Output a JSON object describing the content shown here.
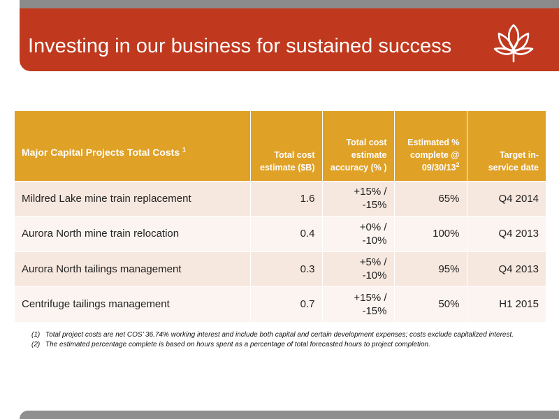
{
  "slide": {
    "title": "Investing in our business for sustained success"
  },
  "table": {
    "headers": {
      "project": "Major Capital Projects Total Costs",
      "project_sup": "1",
      "total_cost": "Total cost estimate ($B)",
      "accuracy": "Total cost estimate accuracy (% )",
      "pct_complete": "Estimated % complete @ 09/30/13",
      "pct_complete_sup": "2",
      "target_date": "Target in-service date"
    },
    "rows": [
      {
        "project": "Mildred Lake mine train replacement",
        "cost": "1.6",
        "accuracy_a": "+15% /",
        "accuracy_b": "-15%",
        "pct": "65%",
        "date": "Q4 2014"
      },
      {
        "project": "Aurora North mine train relocation",
        "cost": "0.4",
        "accuracy_a": "+0% /",
        "accuracy_b": "-10%",
        "pct": "100%",
        "date": "Q4 2013"
      },
      {
        "project": "Aurora North tailings management",
        "cost": "0.3",
        "accuracy_a": "+5% /",
        "accuracy_b": "-10%",
        "pct": "95%",
        "date": "Q4 2013"
      },
      {
        "project": "Centrifuge tailings management",
        "cost": "0.7",
        "accuracy_a": "+15% /",
        "accuracy_b": "-15%",
        "pct": "50%",
        "date": "H1 2015"
      }
    ]
  },
  "footnotes": [
    {
      "num": "(1)",
      "text": "Total project costs are net COS’ 36.74% working interest and include both capital and certain development expenses; costs exclude capitalized interest."
    },
    {
      "num": "(2)",
      "text": "The estimated percentage complete is based on hours spent as a percentage of total forecasted hours to project completion."
    }
  ],
  "colors": {
    "title_bar": "#c0391e",
    "header_fill": "#e0a127",
    "row_odd": "#f7e8df",
    "row_even": "#fbf4f0",
    "frame_gray": "#8a8a8a"
  },
  "logo": {
    "icon": "lotus-flower-logo"
  }
}
